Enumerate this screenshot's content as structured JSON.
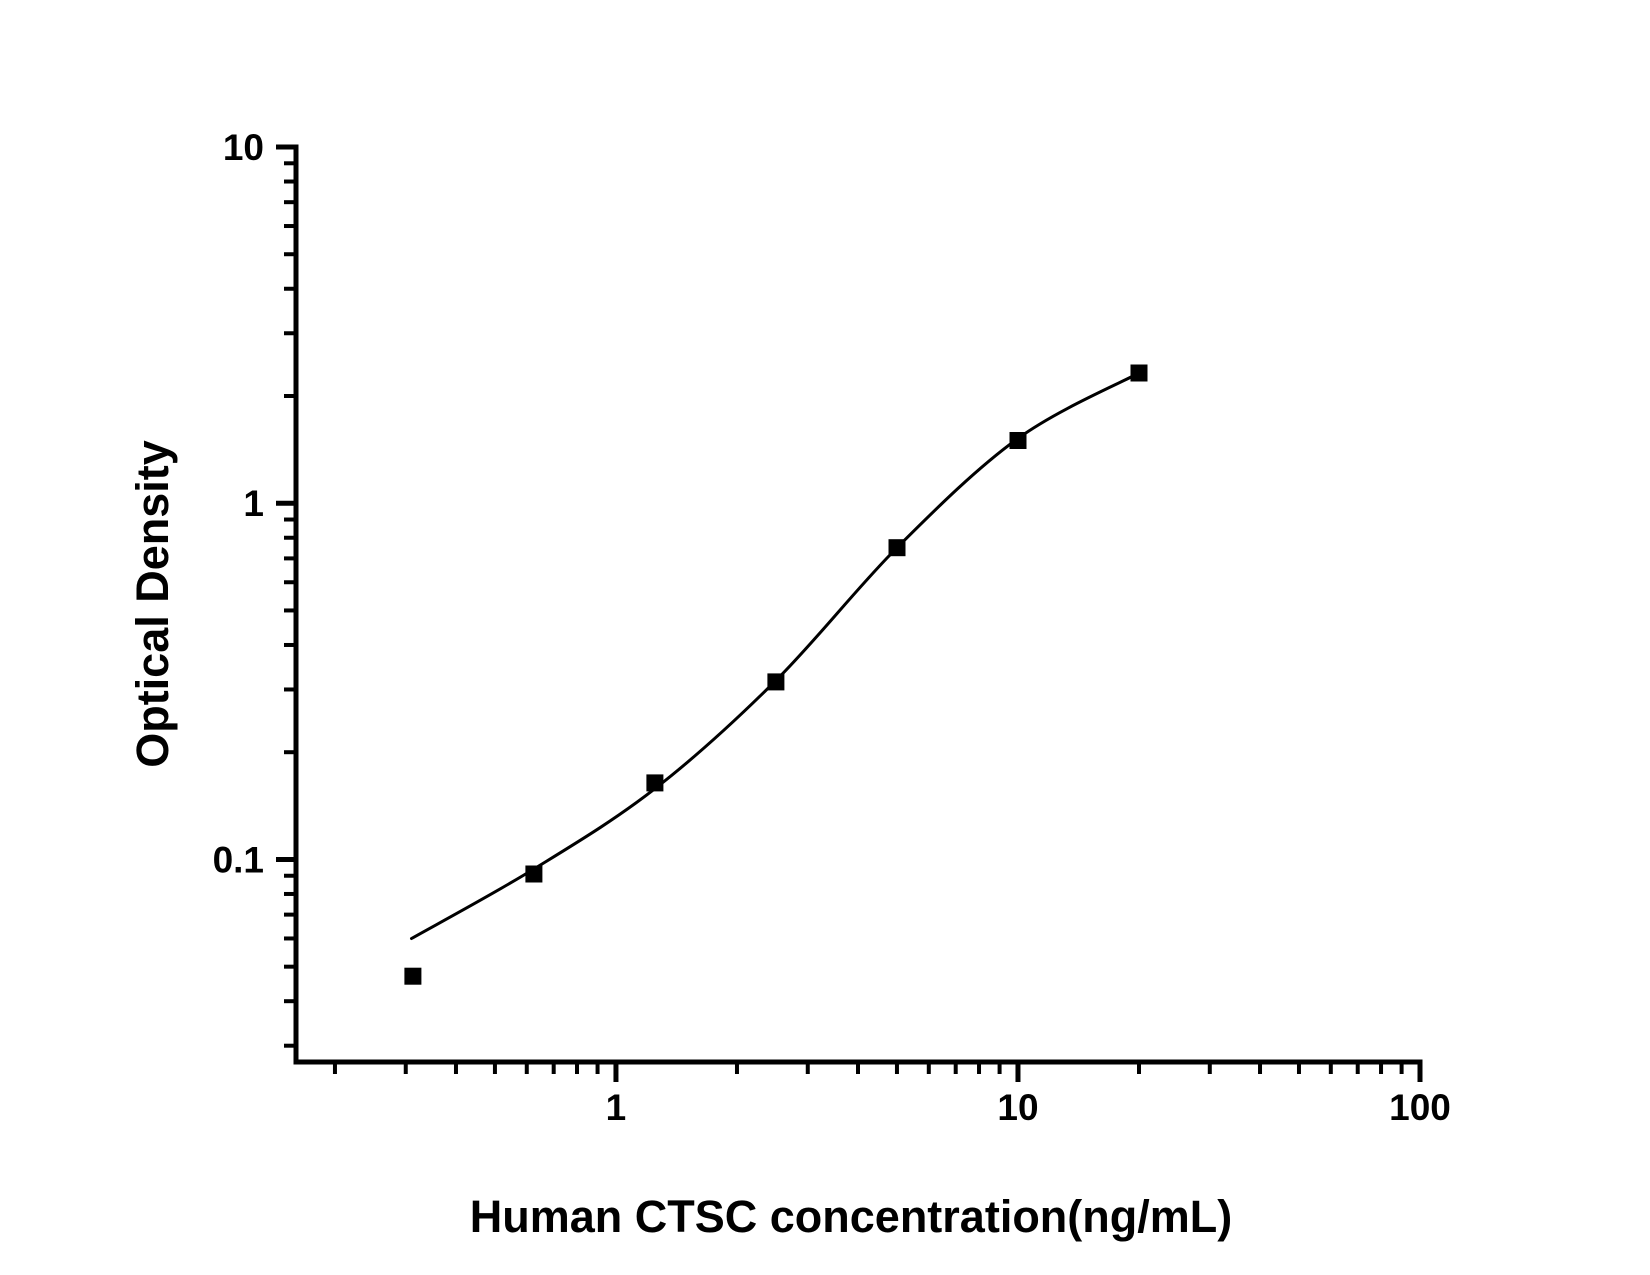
{
  "figure": {
    "background_color": "#ffffff",
    "ink_color": "#000000"
  },
  "chart_data": {
    "type": "scatter",
    "title": "",
    "xlabel": "Human CTSC concentration(ng/mL)",
    "ylabel": "Optical Density",
    "x_scale": "log",
    "y_scale": "log",
    "xlim": [
      0.16,
      100
    ],
    "ylim": [
      0.027,
      10
    ],
    "x_major_tick_labels": [
      "1",
      "10",
      "100"
    ],
    "y_major_tick_labels": [
      "0.1",
      "1",
      "10"
    ],
    "grid": false,
    "legend": null,
    "series": [
      {
        "name": "standards",
        "marker": "filled-square",
        "marker_color": "#000000",
        "marker_size_px": 17,
        "x": [
          0.3125,
          0.625,
          1.25,
          2.5,
          5,
          10,
          20
        ],
        "y": [
          0.047,
          0.091,
          0.164,
          0.315,
          0.75,
          1.5,
          2.32
        ]
      }
    ],
    "fit_curve": {
      "name": "4PL standard-curve fit",
      "color": "#000000",
      "stroke_width_px": 3,
      "anchors_x": [
        0.31,
        0.625,
        1.25,
        2.5,
        5,
        10,
        20
      ],
      "anchors_y": [
        0.06,
        0.094,
        0.158,
        0.318,
        0.75,
        1.52,
        2.32
      ]
    }
  }
}
